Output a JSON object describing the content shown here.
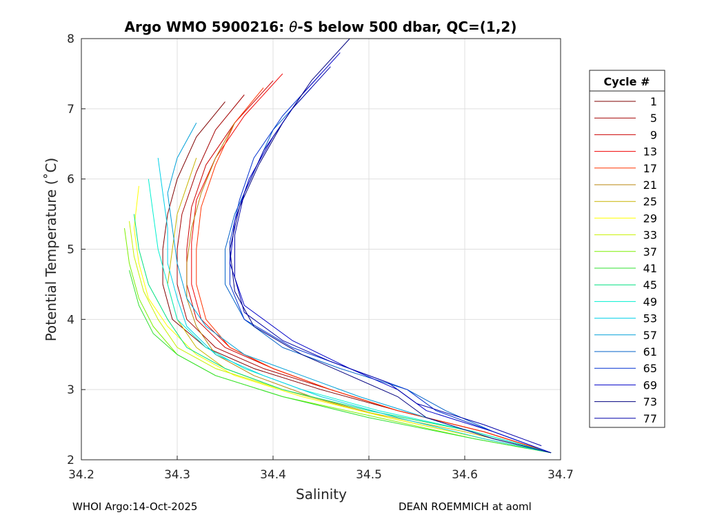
{
  "chart_data": {
    "type": "line",
    "title": "Argo WMO 5900216: θ-S below 500 dbar,  QC=(1,2)",
    "title_prefix": "Argo WMO 5900216: ",
    "title_theta": "θ",
    "title_suffix": "-S below 500 dbar,  QC=(1,2)",
    "xlabel": "Salinity",
    "ylabel": "Potential Temperature (˚C)",
    "xlim": [
      34.2,
      34.7
    ],
    "ylim": [
      2,
      8
    ],
    "xticks": [
      "34.2",
      "34.3",
      "34.4",
      "34.5",
      "34.6",
      "34.7"
    ],
    "yticks": [
      "2",
      "3",
      "4",
      "5",
      "6",
      "7",
      "8"
    ],
    "grid": true,
    "legend": {
      "title": "Cycle #",
      "placement": "right",
      "entries": [
        "1",
        "5",
        "9",
        "13",
        "17",
        "21",
        "25",
        "29",
        "33",
        "37",
        "41",
        "45",
        "49",
        "53",
        "57",
        "61",
        "65",
        "69",
        "73",
        "77"
      ],
      "colors": [
        "#7f0000",
        "#a40000",
        "#cc0000",
        "#f00000",
        "#ff3300",
        "#b8860b",
        "#c8b400",
        "#ffff00",
        "#c8f000",
        "#7cf000",
        "#30e030",
        "#00e080",
        "#00f0d0",
        "#00d0e8",
        "#00a0d8",
        "#0060c8",
        "#0030d0",
        "#0000c8",
        "#00007f",
        "#0000a8"
      ]
    },
    "series": [
      {
        "name": "1",
        "color": "#7f0000",
        "theta": [
          7.1,
          6.6,
          6.0,
          5.5,
          5.0,
          4.5,
          4.0,
          3.6,
          3.3,
          3.0,
          2.7,
          2.4,
          2.1
        ],
        "salinity": [
          34.35,
          34.32,
          34.3,
          34.29,
          34.285,
          34.285,
          34.295,
          34.33,
          34.38,
          34.45,
          34.53,
          34.62,
          34.69
        ]
      },
      {
        "name": "5",
        "color": "#a40000",
        "theta": [
          7.2,
          6.7,
          6.1,
          5.5,
          5.0,
          4.5,
          4.0,
          3.6,
          3.3,
          3.0,
          2.7,
          2.4,
          2.1
        ],
        "salinity": [
          34.37,
          34.34,
          34.32,
          34.305,
          34.3,
          34.3,
          34.31,
          34.34,
          34.39,
          34.46,
          34.53,
          34.62,
          34.69
        ]
      },
      {
        "name": "9",
        "color": "#cc0000",
        "theta": [
          7.4,
          6.8,
          6.2,
          5.6,
          5.0,
          4.5,
          4.0,
          3.6,
          3.3,
          3.0,
          2.7,
          2.4,
          2.1
        ],
        "salinity": [
          34.4,
          34.36,
          34.33,
          34.315,
          34.31,
          34.31,
          34.32,
          34.35,
          34.4,
          34.46,
          34.53,
          34.62,
          34.69
        ]
      },
      {
        "name": "13",
        "color": "#f00000",
        "theta": [
          7.5,
          6.9,
          6.3,
          5.7,
          5.1,
          4.5,
          4.0,
          3.6,
          3.3,
          3.0,
          2.7,
          2.4,
          2.1
        ],
        "salinity": [
          34.41,
          34.37,
          34.34,
          34.32,
          34.315,
          34.315,
          34.325,
          34.355,
          34.4,
          34.46,
          34.53,
          34.62,
          34.69
        ]
      },
      {
        "name": "17",
        "color": "#ff3300",
        "theta": [
          7.3,
          6.8,
          6.2,
          5.6,
          5.0,
          4.5,
          4.0,
          3.6,
          3.3,
          3.0,
          2.7,
          2.4,
          2.1
        ],
        "salinity": [
          34.39,
          34.36,
          34.34,
          34.325,
          34.32,
          34.32,
          34.33,
          34.355,
          34.4,
          34.46,
          34.53,
          34.62,
          34.69
        ]
      },
      {
        "name": "21",
        "color": "#b8860b",
        "theta": [
          6.8,
          6.3,
          5.8,
          5.3,
          4.8,
          4.3,
          3.9,
          3.5,
          3.2,
          2.9,
          2.6,
          2.3,
          2.1
        ],
        "salinity": [
          34.36,
          34.34,
          34.325,
          34.315,
          34.31,
          34.31,
          34.32,
          34.34,
          34.38,
          34.44,
          34.52,
          34.62,
          34.69
        ]
      },
      {
        "name": "25",
        "color": "#c8b400",
        "theta": [
          6.3,
          5.9,
          5.5,
          5.0,
          4.5,
          4.0,
          3.6,
          3.3,
          3.0,
          2.7,
          2.4,
          2.1
        ],
        "salinity": [
          34.32,
          34.31,
          34.3,
          34.295,
          34.29,
          34.3,
          34.32,
          34.35,
          34.41,
          34.49,
          34.6,
          34.69
        ]
      },
      {
        "name": "29",
        "color": "#ffff00",
        "theta": [
          5.9,
          5.3,
          4.8,
          4.3,
          3.9,
          3.5,
          3.2,
          2.9,
          2.6,
          2.3,
          2.1
        ],
        "salinity": [
          34.26,
          34.255,
          34.26,
          34.27,
          34.29,
          34.32,
          34.36,
          34.43,
          34.52,
          34.62,
          34.69
        ]
      },
      {
        "name": "33",
        "color": "#c8f000",
        "theta": [
          5.4,
          4.9,
          4.4,
          4.0,
          3.6,
          3.3,
          3.0,
          2.7,
          2.4,
          2.1
        ],
        "salinity": [
          34.25,
          34.255,
          34.265,
          34.28,
          34.3,
          34.34,
          34.41,
          34.5,
          34.61,
          34.69
        ]
      },
      {
        "name": "37",
        "color": "#7cf000",
        "theta": [
          5.3,
          4.8,
          4.3,
          3.9,
          3.5,
          3.2,
          2.9,
          2.6,
          2.3,
          2.1
        ],
        "salinity": [
          34.245,
          34.25,
          34.26,
          34.275,
          34.3,
          34.34,
          34.41,
          34.51,
          34.61,
          34.69
        ]
      },
      {
        "name": "41",
        "color": "#30e030",
        "theta": [
          4.7,
          4.2,
          3.8,
          3.5,
          3.2,
          2.9,
          2.6,
          2.3,
          2.1
        ],
        "salinity": [
          34.25,
          34.26,
          34.275,
          34.3,
          34.34,
          34.41,
          34.5,
          34.61,
          34.69
        ]
      },
      {
        "name": "45",
        "color": "#00e080",
        "theta": [
          5.5,
          5.0,
          4.5,
          4.0,
          3.6,
          3.3,
          3.0,
          2.7,
          2.4,
          2.1
        ],
        "salinity": [
          34.255,
          34.26,
          34.27,
          34.29,
          34.31,
          34.35,
          34.41,
          34.5,
          34.61,
          34.69
        ]
      },
      {
        "name": "49",
        "color": "#00f0d0",
        "theta": [
          6.0,
          5.5,
          5.0,
          4.5,
          4.0,
          3.6,
          3.3,
          3.0,
          2.7,
          2.4,
          2.1
        ],
        "salinity": [
          34.27,
          34.275,
          34.28,
          34.29,
          34.3,
          34.33,
          34.37,
          34.43,
          34.51,
          34.61,
          34.69
        ]
      },
      {
        "name": "53",
        "color": "#00d0e8",
        "theta": [
          6.3,
          5.8,
          5.3,
          4.8,
          4.3,
          3.9,
          3.5,
          3.2,
          2.9,
          2.6,
          2.3,
          2.1
        ],
        "salinity": [
          34.28,
          34.285,
          34.29,
          34.29,
          34.3,
          34.31,
          34.34,
          34.39,
          34.45,
          34.53,
          34.62,
          34.69
        ]
      },
      {
        "name": "57",
        "color": "#00a0d8",
        "theta": [
          6.8,
          6.3,
          5.8,
          5.3,
          4.8,
          4.3,
          3.9,
          3.5,
          3.2,
          2.9,
          2.6,
          2.3,
          2.1
        ],
        "salinity": [
          34.32,
          34.3,
          34.29,
          34.295,
          34.3,
          34.31,
          34.33,
          34.37,
          34.43,
          34.49,
          34.56,
          34.63,
          34.69
        ]
      },
      {
        "name": "61",
        "color": "#0060c8",
        "theta": [
          7.3,
          6.7,
          6.1,
          5.5,
          5.0,
          4.5,
          4.0,
          3.6,
          3.3,
          3.0,
          2.7,
          2.4,
          2.1
        ],
        "salinity": [
          34.44,
          34.4,
          34.38,
          34.36,
          34.35,
          34.35,
          34.37,
          34.41,
          34.47,
          34.54,
          34.58,
          34.63,
          34.69
        ]
      },
      {
        "name": "65",
        "color": "#0030d0",
        "theta": [
          7.5,
          6.9,
          6.3,
          5.7,
          5.1,
          4.5,
          4.0,
          3.6,
          3.3,
          3.0,
          2.7,
          2.4,
          2.1
        ],
        "salinity": [
          34.45,
          34.41,
          34.38,
          34.365,
          34.355,
          34.355,
          34.37,
          34.42,
          34.48,
          34.54,
          34.57,
          34.63,
          34.69
        ]
      },
      {
        "name": "69",
        "color": "#0000c8",
        "theta": [
          7.8,
          7.2,
          6.6,
          6.0,
          5.4,
          4.8,
          4.2,
          3.7,
          3.3,
          3.0,
          2.7,
          2.4,
          2.1
        ],
        "salinity": [
          34.47,
          34.43,
          34.4,
          34.375,
          34.36,
          34.355,
          34.37,
          34.42,
          34.48,
          34.53,
          34.56,
          34.63,
          34.69
        ]
      },
      {
        "name": "73",
        "color": "#00007f",
        "theta": [
          8.0,
          7.4,
          6.8,
          6.2,
          5.6,
          5.0,
          4.4,
          3.9,
          3.5,
          3.2,
          2.9,
          2.6,
          2.3,
          2.1
        ],
        "salinity": [
          34.48,
          34.44,
          34.41,
          34.385,
          34.365,
          34.355,
          34.36,
          34.38,
          34.43,
          34.48,
          34.53,
          34.56,
          34.63,
          34.69
        ]
      },
      {
        "name": "77",
        "color": "#0000a8",
        "theta": [
          7.6,
          7.0,
          6.4,
          5.8,
          5.2,
          4.6,
          4.1,
          3.7,
          3.4,
          3.1,
          2.8,
          2.5,
          2.2
        ],
        "salinity": [
          34.46,
          34.42,
          34.39,
          34.37,
          34.36,
          34.36,
          34.37,
          34.41,
          34.46,
          34.52,
          34.55,
          34.62,
          34.68
        ]
      }
    ]
  },
  "footer": {
    "left": "WHOI Argo:14-Oct-2025",
    "right": "DEAN ROEMMICH at aoml"
  }
}
